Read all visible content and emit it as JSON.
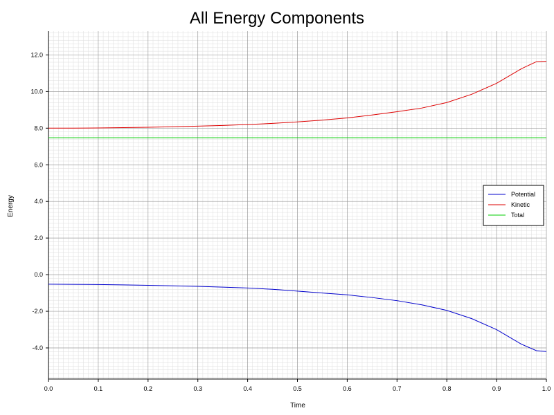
{
  "chart_data": {
    "type": "line",
    "title": "All Energy Components",
    "xlabel": "Time",
    "ylabel": "Energy",
    "xlim": [
      0.0,
      1.0
    ],
    "ylim": [
      -5.7,
      13.3
    ],
    "x_ticks": [
      0.0,
      0.1,
      0.2,
      0.3,
      0.4,
      0.5,
      0.6,
      0.7,
      0.8,
      0.9,
      1.0
    ],
    "x_tick_labels": [
      "0.0",
      "0.1",
      "0.2",
      "0.3",
      "0.4",
      "0.5",
      "0.6",
      "0.7",
      "0.8",
      "0.9",
      "1.0"
    ],
    "y_ticks": [
      -4.0,
      -2.0,
      0.0,
      2.0,
      4.0,
      6.0,
      8.0,
      10.0,
      12.0
    ],
    "y_tick_labels": [
      "-4.0",
      "-2.0",
      "0.0",
      "2.0",
      "4.0",
      "6.0",
      "8.0",
      "10.0",
      "12.0"
    ],
    "grid": true,
    "legend_position": "center-right",
    "x": [
      0.0,
      0.05,
      0.1,
      0.15,
      0.2,
      0.25,
      0.3,
      0.35,
      0.4,
      0.45,
      0.5,
      0.55,
      0.6,
      0.65,
      0.7,
      0.75,
      0.8,
      0.85,
      0.9,
      0.95,
      0.98,
      1.0
    ],
    "series": [
      {
        "name": "Potential",
        "color": "#0000cc",
        "values": [
          -0.52,
          -0.53,
          -0.54,
          -0.56,
          -0.58,
          -0.61,
          -0.64,
          -0.68,
          -0.73,
          -0.8,
          -0.9,
          -1.0,
          -1.1,
          -1.25,
          -1.42,
          -1.65,
          -1.95,
          -2.4,
          -3.0,
          -3.8,
          -4.15,
          -4.2
        ]
      },
      {
        "name": "Kinetic",
        "color": "#dd0000",
        "values": [
          8.0,
          8.0,
          8.01,
          8.03,
          8.05,
          8.08,
          8.11,
          8.15,
          8.2,
          8.26,
          8.34,
          8.44,
          8.56,
          8.72,
          8.9,
          9.1,
          9.4,
          9.85,
          10.45,
          11.25,
          11.63,
          11.65
        ]
      },
      {
        "name": "Total",
        "color": "#00cc00",
        "values": [
          7.48,
          7.48,
          7.48,
          7.48,
          7.48,
          7.48,
          7.48,
          7.48,
          7.48,
          7.48,
          7.48,
          7.48,
          7.48,
          7.48,
          7.48,
          7.48,
          7.48,
          7.48,
          7.48,
          7.48,
          7.48,
          7.48
        ]
      }
    ]
  }
}
